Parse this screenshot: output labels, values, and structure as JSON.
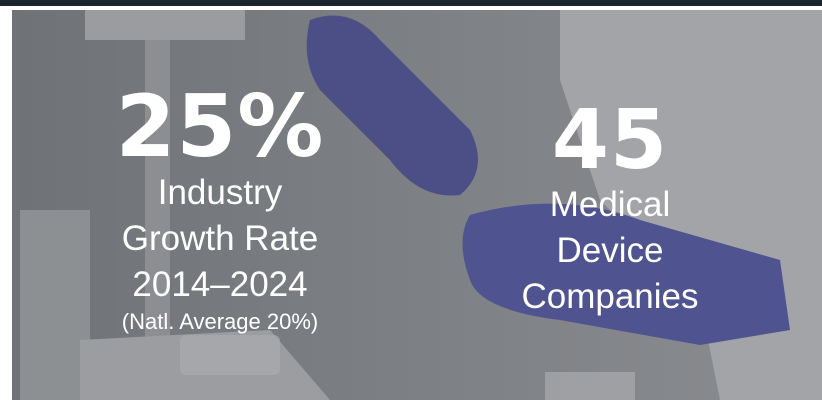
{
  "stats": [
    {
      "figure": "25%",
      "lines": [
        "Industry",
        "Growth Rate",
        "2014–2024"
      ],
      "note": "(Natl. Average 20%)"
    },
    {
      "figure": "45",
      "lines": [
        "Medical",
        "Device",
        "Companies"
      ]
    }
  ]
}
